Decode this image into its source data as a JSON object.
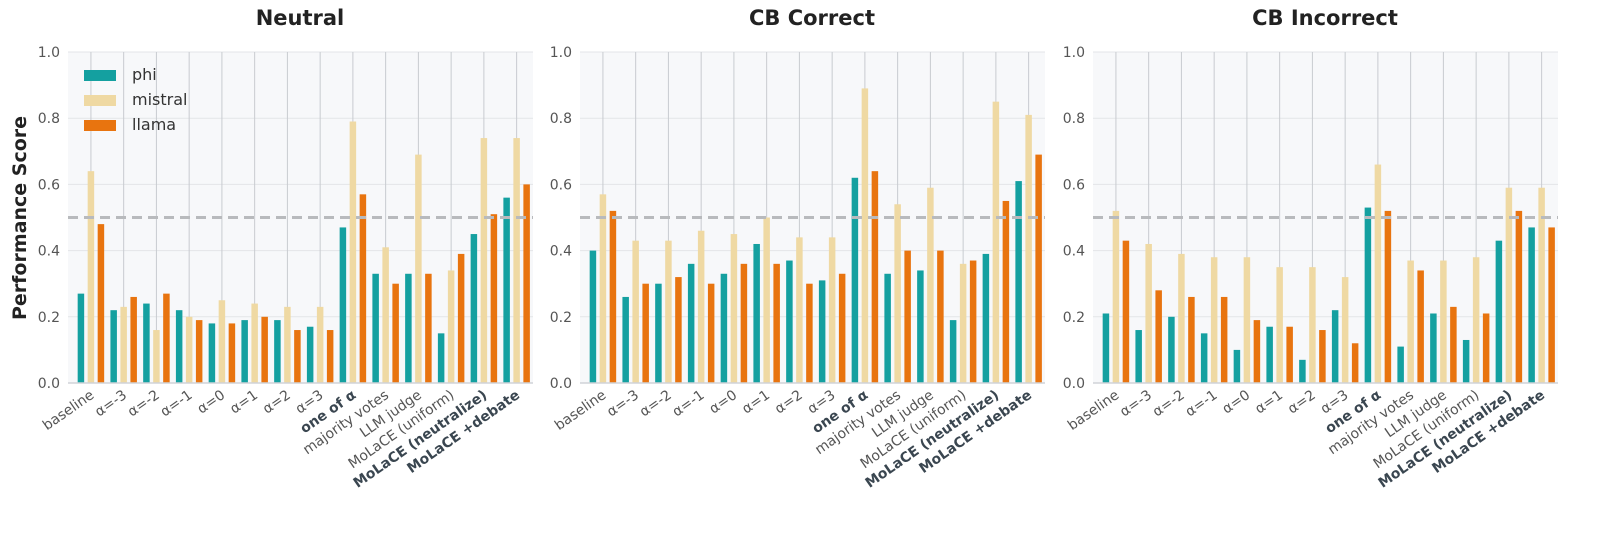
{
  "figure": {
    "ylabel": "Performance Score",
    "legend": [
      "phi",
      "mistral",
      "llama"
    ]
  },
  "chart_data": [
    {
      "type": "bar",
      "title": "Neutral",
      "categories": [
        "baseline",
        "α=-3",
        "α=-2",
        "α=-1",
        "α=0",
        "α=1",
        "α=2",
        "α=3",
        "one of α",
        "majority votes",
        "LLM judge",
        "MoLaCE (uniform)",
        "MoLaCE (neutralize)",
        "MoLaCE +debate"
      ],
      "bold_categories": [
        "one of α",
        "MoLaCE (neutralize)",
        "MoLaCE +debate"
      ],
      "series": [
        {
          "name": "phi",
          "color": "#14a0a0",
          "values": [
            0.27,
            0.22,
            0.24,
            0.22,
            0.18,
            0.19,
            0.19,
            0.17,
            0.47,
            0.33,
            0.33,
            0.15,
            0.45,
            0.56
          ]
        },
        {
          "name": "mistral",
          "color": "#efd9a3",
          "values": [
            0.64,
            0.23,
            0.16,
            0.2,
            0.25,
            0.24,
            0.23,
            0.23,
            0.79,
            0.41,
            0.69,
            0.34,
            0.74,
            0.74
          ]
        },
        {
          "name": "llama",
          "color": "#e8740f",
          "values": [
            0.48,
            0.26,
            0.27,
            0.19,
            0.18,
            0.2,
            0.16,
            0.16,
            0.57,
            0.3,
            0.33,
            0.39,
            0.51,
            0.6
          ]
        }
      ],
      "ylim": [
        0,
        1.0
      ],
      "yticks": [
        0.0,
        0.2,
        0.4,
        0.6,
        0.8,
        1.0
      ],
      "reference_line": 0.5,
      "grid": true,
      "legend_position": "top-left"
    },
    {
      "type": "bar",
      "title": "CB Correct",
      "categories": [
        "baseline",
        "α=-3",
        "α=-2",
        "α=-1",
        "α=0",
        "α=1",
        "α=2",
        "α=3",
        "one of α",
        "majority votes",
        "LLM judge",
        "MoLaCE (uniform)",
        "MoLaCE (neutralize)",
        "MoLaCE +debate"
      ],
      "bold_categories": [
        "one of α",
        "MoLaCE (neutralize)",
        "MoLaCE +debate"
      ],
      "series": [
        {
          "name": "phi",
          "color": "#14a0a0",
          "values": [
            0.4,
            0.26,
            0.3,
            0.36,
            0.33,
            0.42,
            0.37,
            0.31,
            0.62,
            0.33,
            0.34,
            0.19,
            0.39,
            0.61
          ]
        },
        {
          "name": "mistral",
          "color": "#efd9a3",
          "values": [
            0.57,
            0.43,
            0.43,
            0.46,
            0.45,
            0.5,
            0.44,
            0.44,
            0.89,
            0.54,
            0.59,
            0.36,
            0.85,
            0.81
          ]
        },
        {
          "name": "llama",
          "color": "#e8740f",
          "values": [
            0.52,
            0.3,
            0.32,
            0.3,
            0.36,
            0.36,
            0.3,
            0.33,
            0.64,
            0.4,
            0.4,
            0.37,
            0.55,
            0.69
          ]
        }
      ],
      "ylim": [
        0,
        1.0
      ],
      "yticks": [
        0.0,
        0.2,
        0.4,
        0.6,
        0.8,
        1.0
      ],
      "reference_line": 0.5,
      "grid": true
    },
    {
      "type": "bar",
      "title": "CB Incorrect",
      "categories": [
        "baseline",
        "α=-3",
        "α=-2",
        "α=-1",
        "α=0",
        "α=1",
        "α=2",
        "α=3",
        "one of α",
        "majority votes",
        "LLM judge",
        "MoLaCE (uniform)",
        "MoLaCE (neutralize)",
        "MoLaCE +debate"
      ],
      "bold_categories": [
        "one of α",
        "MoLaCE (neutralize)",
        "MoLaCE +debate"
      ],
      "series": [
        {
          "name": "phi",
          "color": "#14a0a0",
          "values": [
            0.21,
            0.16,
            0.2,
            0.15,
            0.1,
            0.17,
            0.07,
            0.22,
            0.53,
            0.11,
            0.21,
            0.13,
            0.43,
            0.47
          ]
        },
        {
          "name": "mistral",
          "color": "#efd9a3",
          "values": [
            0.52,
            0.42,
            0.39,
            0.38,
            0.38,
            0.35,
            0.35,
            0.32,
            0.66,
            0.37,
            0.37,
            0.38,
            0.59,
            0.59
          ]
        },
        {
          "name": "llama",
          "color": "#e8740f",
          "values": [
            0.43,
            0.28,
            0.26,
            0.26,
            0.19,
            0.17,
            0.16,
            0.12,
            0.52,
            0.34,
            0.23,
            0.21,
            0.52,
            0.47
          ]
        }
      ],
      "ylim": [
        0,
        1.0
      ],
      "yticks": [
        0.0,
        0.2,
        0.4,
        0.6,
        0.8,
        1.0
      ],
      "reference_line": 0.5,
      "grid": true
    }
  ]
}
